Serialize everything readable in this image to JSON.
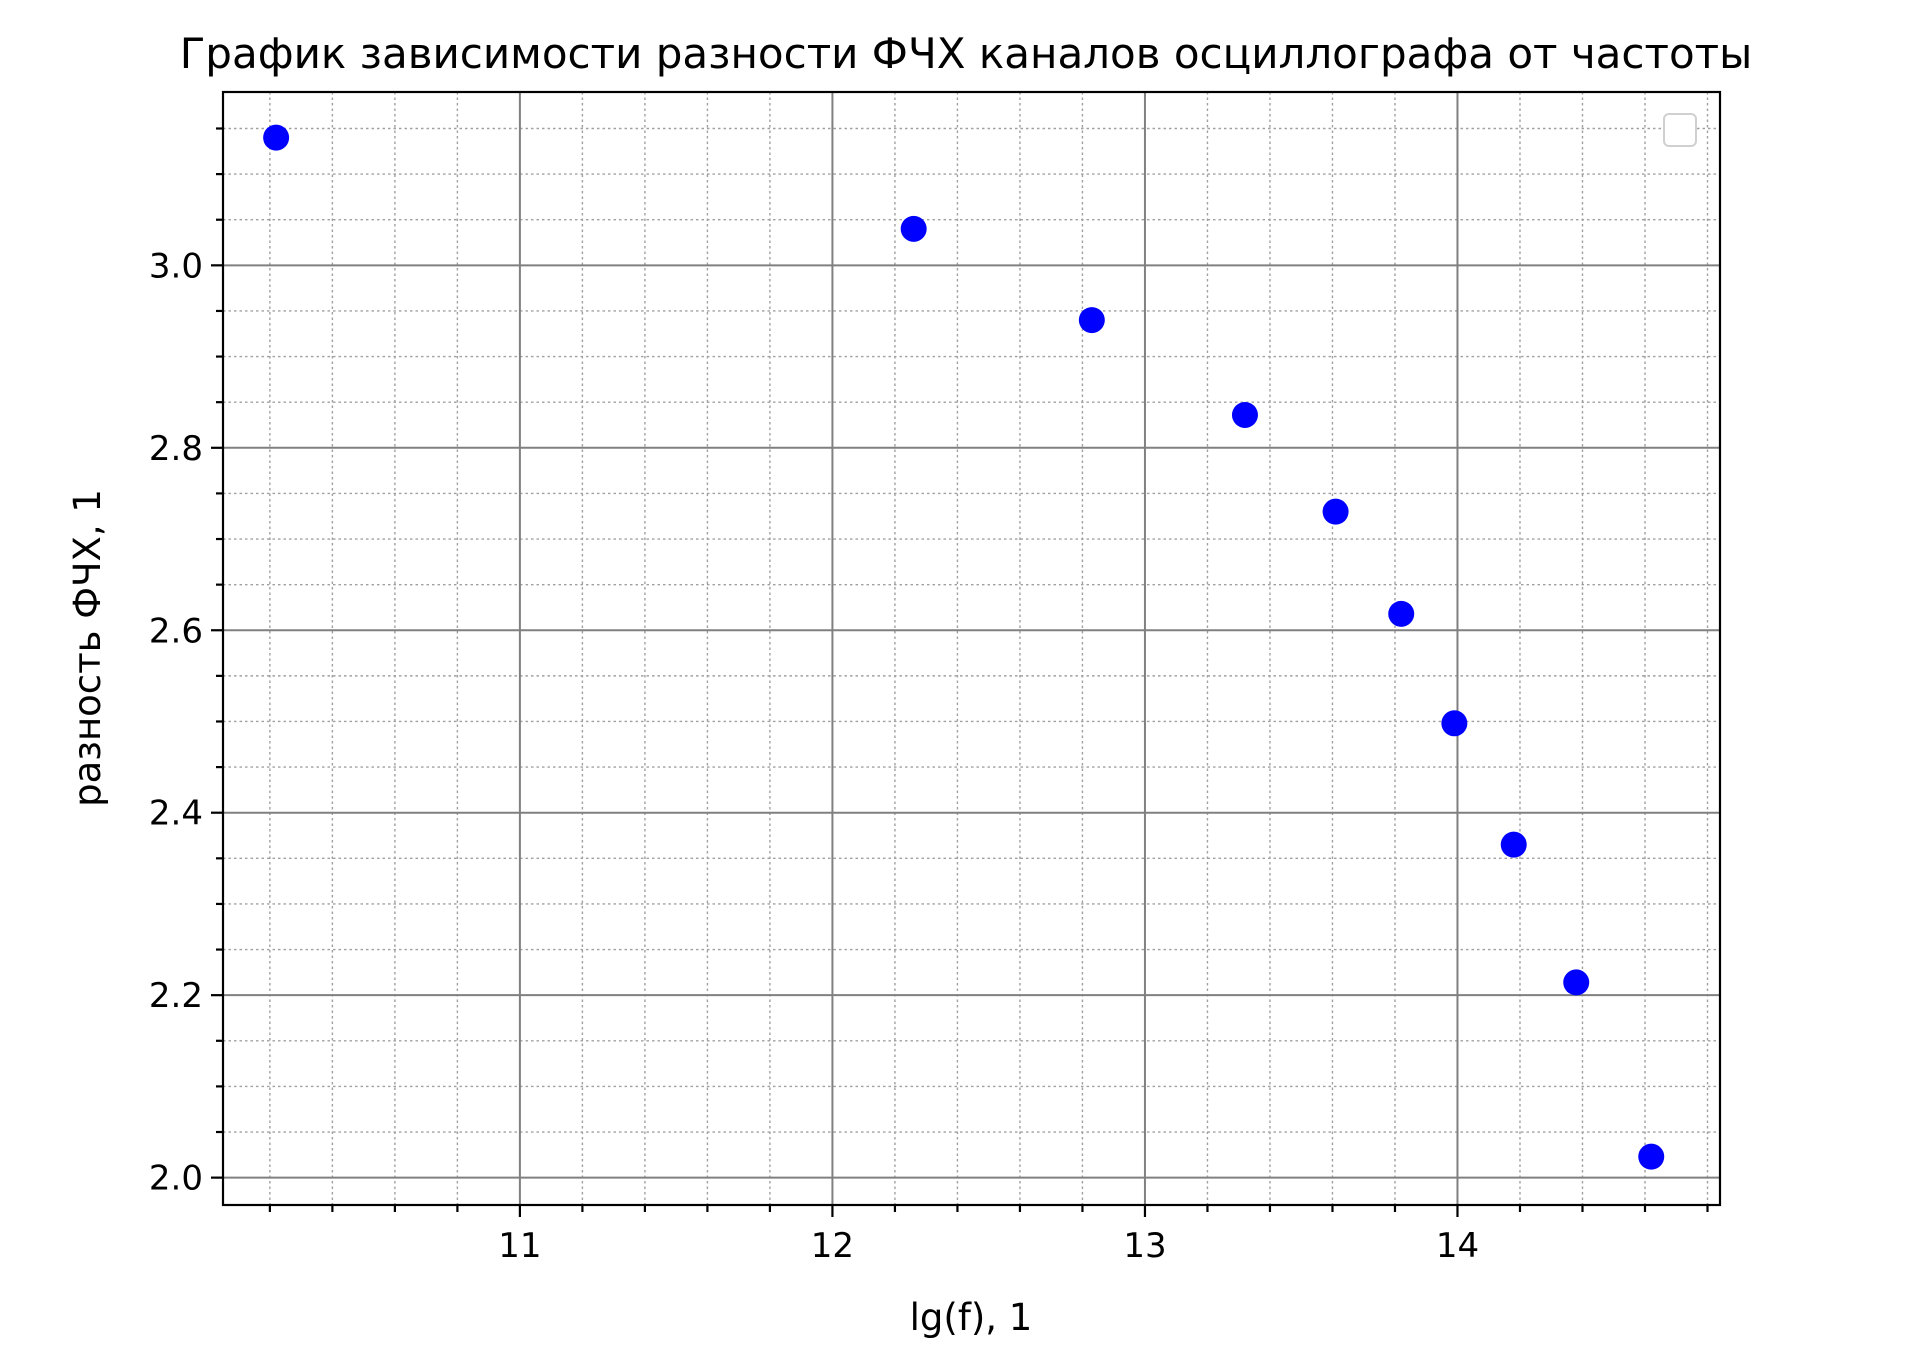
{
  "chart_data": {
    "type": "scatter",
    "title": "График зависимости разности ФЧХ каналов осциллографа от частоты",
    "xlabel": "lg(f), 1",
    "ylabel": "разность ФЧХ, 1",
    "xlim": [
      10.05,
      14.84
    ],
    "ylim": [
      1.97,
      3.19
    ],
    "x_major_ticks": [
      11,
      12,
      13,
      14
    ],
    "x_tick_labels": [
      "11",
      "12",
      "13",
      "14"
    ],
    "x_minor_step": 0.2,
    "y_major_ticks": [
      2.0,
      2.2,
      2.4,
      2.6,
      2.8,
      3.0
    ],
    "y_tick_labels": [
      "2.0",
      "2.2",
      "2.4",
      "2.6",
      "2.8",
      "3.0"
    ],
    "y_minor_step": 0.05,
    "grid": true,
    "legend": "upper right, empty",
    "marker_color": "#0000ff",
    "series": [
      {
        "x": [
          10.22,
          12.26,
          12.83,
          13.32,
          13.61,
          13.82,
          13.99,
          14.18,
          14.38,
          14.62
        ],
        "y": [
          3.14,
          3.04,
          2.94,
          2.836,
          2.73,
          2.618,
          2.498,
          2.365,
          2.214,
          2.023
        ]
      }
    ]
  }
}
